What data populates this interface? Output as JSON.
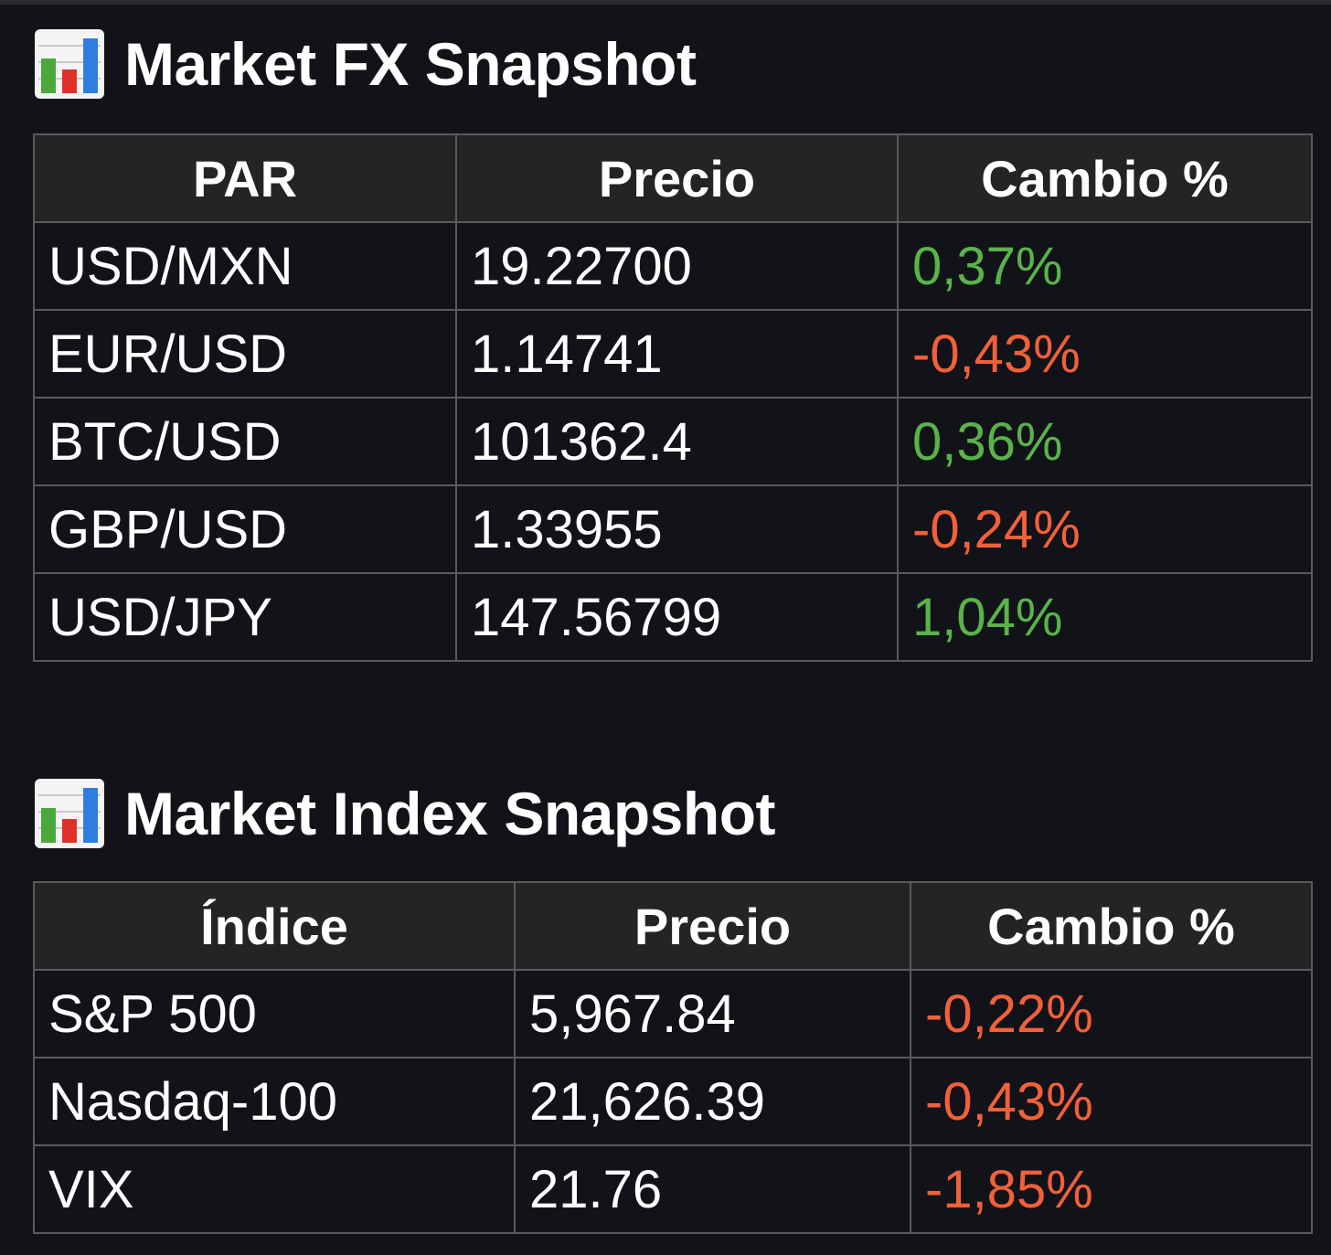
{
  "fx": {
    "title": "Market FX Snapshot",
    "headers": [
      "PAR",
      "Precio",
      "Cambio %"
    ],
    "rows": [
      {
        "pair": "USD/MXN",
        "price": "19.22700",
        "change": "0,37%",
        "direction": "up"
      },
      {
        "pair": "EUR/USD",
        "price": "1.14741",
        "change": "-0,43%",
        "direction": "down"
      },
      {
        "pair": "BTC/USD",
        "price": "101362.4",
        "change": "0,36%",
        "direction": "up"
      },
      {
        "pair": "GBP/USD",
        "price": "1.33955",
        "change": "-0,24%",
        "direction": "down"
      },
      {
        "pair": "USD/JPY",
        "price": "147.56799",
        "change": "1,04%",
        "direction": "up"
      }
    ]
  },
  "index": {
    "title": "Market Index Snapshot",
    "headers": [
      "Índice",
      "Precio",
      "Cambio %"
    ],
    "rows": [
      {
        "name": "S&P 500",
        "price": "5,967.84",
        "change": "-0,22%",
        "direction": "down"
      },
      {
        "name": "Nasdaq-100",
        "price": "21,626.39",
        "change": "-0,43%",
        "direction": "down"
      },
      {
        "name": "VIX",
        "price": "21.76",
        "change": "-1,85%",
        "direction": "down"
      }
    ]
  },
  "colors": {
    "positive": "#5ab34a",
    "negative": "#f2603a",
    "background": "#121318",
    "header_bg": "#242424"
  },
  "icons": {
    "section": "bar-chart-icon"
  }
}
